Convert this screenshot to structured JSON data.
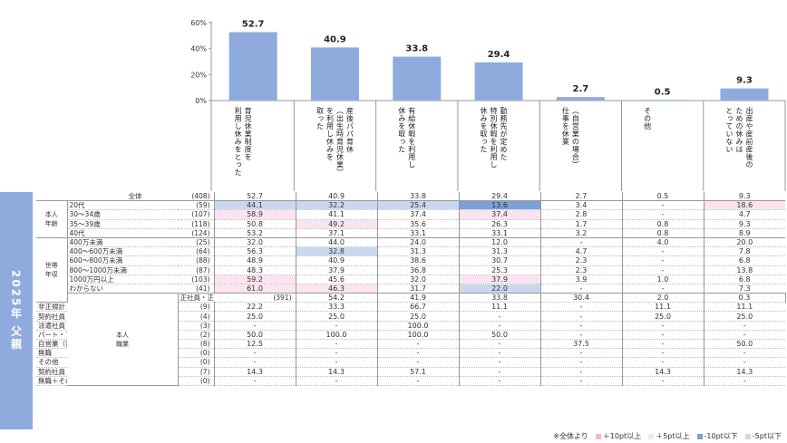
{
  "chart_data": {
    "type": "bar",
    "title": "",
    "ylim": [
      0,
      60
    ],
    "yticks": [
      "0%",
      "20%",
      "40%",
      "60%"
    ],
    "categories": [
      "育児休業制度を\n利用し休みをとった",
      "産後パパ育休\n（出生時育児休業）\nを利用し休みを\n取った",
      "有給休暇を利用し\n休みを取った",
      "勤務先が定めた\n特別休暇を利用し\n休みを取った",
      "（自営業の場合）\n仕事を休業",
      "その他",
      "出産や産前産後の\nための休みは\nとっていない"
    ],
    "values": [
      52.7,
      40.9,
      33.8,
      29.4,
      2.7,
      0.5,
      9.3
    ],
    "value_labels": [
      "52.7",
      "40.9",
      "33.8",
      "29.4",
      "2.7",
      "0.5",
      "9.3"
    ],
    "bar_color": "#8faadc"
  },
  "banner": "2025年 父親",
  "table": {
    "rows": [
      {
        "group": "",
        "label": "全体",
        "n": "(408)",
        "values": [
          "52.7",
          "40.9",
          "33.8",
          "29.4",
          "2.7",
          "0.5",
          "9.3"
        ],
        "hl": [
          "",
          "",
          "",
          "",
          "",
          "",
          ""
        ]
      },
      {
        "group": "本人\n年齢",
        "span": 4,
        "label": "20代",
        "n": "(59)",
        "values": [
          "44.1",
          "32.2",
          "25.4",
          "13.6",
          "3.4",
          "-",
          "18.6"
        ],
        "hl": [
          "lo5",
          "lo5",
          "lo5",
          "lo10",
          "",
          "",
          "hi5"
        ]
      },
      {
        "label": "30～34歳",
        "n": "(107)",
        "values": [
          "58.9",
          "41.1",
          "37.4",
          "37.4",
          "2.8",
          "-",
          "4.7"
        ],
        "hl": [
          "hi5",
          "",
          "",
          "hi5",
          "",
          "",
          ""
        ]
      },
      {
        "label": "35～39歳",
        "n": "(118)",
        "values": [
          "50.8",
          "49.2",
          "35.6",
          "26.3",
          "1.7",
          "0.8",
          "9.3"
        ],
        "hl": [
          "",
          "hi5",
          "",
          "",
          "",
          "",
          ""
        ]
      },
      {
        "label": "40代",
        "n": "(124)",
        "values": [
          "53.2",
          "37.1",
          "33.1",
          "33.1",
          "3.2",
          "0.8",
          "8.9"
        ],
        "hl": [
          "",
          "",
          "",
          "",
          "",
          "",
          ""
        ]
      },
      {
        "group": "世帯\n年収",
        "span": 7,
        "label": "400万未満",
        "n": "(25)",
        "values": [
          "32.0",
          "44.0",
          "24.0",
          "12.0",
          "-",
          "4.0",
          "20.0"
        ],
        "hl": [
          "",
          "",
          "",
          "",
          "",
          "",
          ""
        ]
      },
      {
        "label": "400～600万未満",
        "n": "(64)",
        "values": [
          "56.3",
          "32.8",
          "31.3",
          "31.3",
          "4.7",
          "-",
          "7.8"
        ],
        "hl": [
          "",
          "lo5",
          "",
          "",
          "",
          "",
          ""
        ]
      },
      {
        "label": "600～800万未満",
        "n": "(88)",
        "values": [
          "48.9",
          "40.9",
          "38.6",
          "30.7",
          "2.3",
          "-",
          "6.8"
        ],
        "hl": [
          "",
          "",
          "",
          "",
          "",
          "",
          ""
        ]
      },
      {
        "label": "800～1000万未満",
        "n": "(87)",
        "values": [
          "48.3",
          "37.9",
          "36.8",
          "25.3",
          "2.3",
          "-",
          "13.8"
        ],
        "hl": [
          "",
          "",
          "",
          "",
          "",
          "",
          ""
        ]
      },
      {
        "label": "1000万円以上",
        "n": "(103)",
        "values": [
          "59.2",
          "45.6",
          "32.0",
          "37.9",
          "3.9",
          "1.0",
          "6.8"
        ],
        "hl": [
          "hi5",
          "",
          "",
          "hi5",
          "",
          "",
          ""
        ]
      },
      {
        "label": "わからない",
        "n": "(41)",
        "values": [
          "61.0",
          "46.3",
          "31.7",
          "22.0",
          "-",
          "-",
          "7.3"
        ],
        "hl": [
          "hi5",
          "hi5",
          "",
          "lo5",
          "",
          "",
          ""
        ]
      },
      {
        "group": "本人\n職業",
        "span": 11,
        "label": "正社員・正職員",
        "n": "(391)",
        "values": [
          "54.2",
          "41.9",
          "33.8",
          "30.4",
          "2.0",
          "0.3",
          "8.4"
        ],
        "hl": [
          "",
          "",
          "",
          "",
          "",
          "",
          ""
        ]
      },
      {
        "label": "非正規計",
        "n": "(9)",
        "values": [
          "22.2",
          "33.3",
          "66.7",
          "11.1",
          "-",
          "11.1",
          "11.1"
        ],
        "hl": [
          "",
          "",
          "",
          "",
          "",
          "",
          ""
        ]
      },
      {
        "label": "契約社員・嘱託",
        "n": "(4)",
        "values": [
          "25.0",
          "25.0",
          "25.0",
          "-",
          "-",
          "25.0",
          "25.0"
        ],
        "hl": [
          "",
          "",
          "",
          "",
          "",
          "",
          ""
        ]
      },
      {
        "label": "派遣社員",
        "n": "(3)",
        "values": [
          "-",
          "-",
          "100.0",
          "-",
          "-",
          "-",
          "-"
        ],
        "hl": [
          "",
          "",
          "",
          "",
          "",
          "",
          ""
        ]
      },
      {
        "label": "パート・アルバイト",
        "n": "(2)",
        "values": [
          "50.0",
          "100.0",
          "100.0",
          "50.0",
          "-",
          "-",
          "-"
        ],
        "hl": [
          "",
          "",
          "",
          "",
          "",
          "",
          ""
        ]
      },
      {
        "label": "自営業（家族従業員を含む）",
        "n": "(8)",
        "values": [
          "12.5",
          "-",
          "-",
          "-",
          "37.5",
          "-",
          "50.0"
        ],
        "hl": [
          "",
          "",
          "",
          "",
          "",
          "",
          ""
        ]
      },
      {
        "label": "無職",
        "n": "(0)",
        "values": [
          "-",
          "-",
          "-",
          "-",
          "-",
          "-",
          "-"
        ],
        "hl": [
          "",
          "",
          "",
          "",
          "",
          "",
          ""
        ]
      },
      {
        "label": "その他",
        "n": "(0)",
        "values": [
          "-",
          "-",
          "-",
          "-",
          "-",
          "-",
          "-"
        ],
        "hl": [
          "",
          "",
          "",
          "",
          "",
          "",
          ""
        ]
      },
      {
        "label": "契約社員・嘱託＋派遣社員",
        "n": "(7)",
        "values": [
          "14.3",
          "14.3",
          "57.1",
          "-",
          "-",
          "14.3",
          "14.3"
        ],
        "hl": [
          "",
          "",
          "",
          "",
          "",
          "",
          ""
        ]
      },
      {
        "label": "無職＋その他",
        "n": "(0)",
        "values": [
          "-",
          "-",
          "-",
          "-",
          "-",
          "-",
          "-"
        ],
        "hl": [
          "",
          "",
          "",
          "",
          "",
          "",
          ""
        ]
      }
    ]
  },
  "legend": {
    "prefix": "※全体より",
    "items": [
      {
        "label": "＋10pt以上",
        "color": "#f4b6d6"
      },
      {
        "label": "＋5pt以上",
        "color": "#fbe3f0"
      },
      {
        "label": "-10pt以下",
        "color": "#7b9fd6"
      },
      {
        "label": "-5pt以下",
        "color": "#c9d8ee"
      }
    ]
  }
}
